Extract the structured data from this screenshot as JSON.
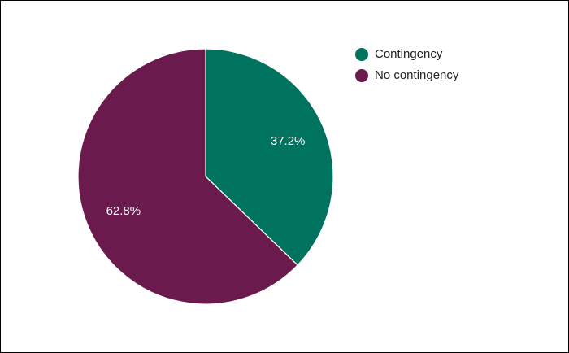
{
  "chart_data": {
    "type": "pie",
    "categories": [
      "Contingency",
      "No contingency"
    ],
    "values": [
      37.2,
      62.8
    ],
    "value_labels": [
      "37.2%",
      "62.8%"
    ],
    "colors": [
      "#00735f",
      "#6a1a4c"
    ],
    "legend": "top-right"
  }
}
